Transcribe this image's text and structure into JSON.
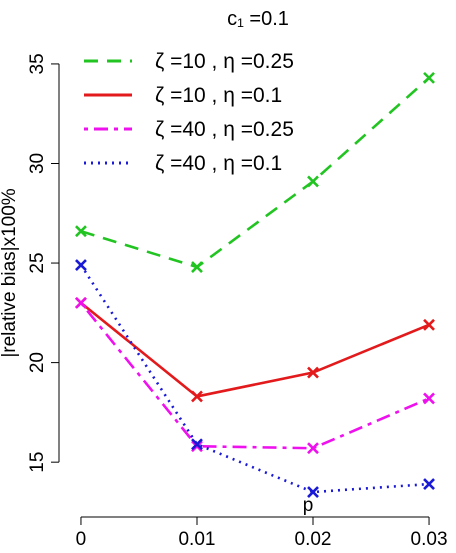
{
  "chart_data": {
    "type": "line",
    "title": "c₁ =0.1",
    "xlabel": "p",
    "ylabel": "|relative bias|x100%",
    "x": [
      0,
      0.01,
      0.02,
      0.03
    ],
    "x_tick_labels": [
      "0",
      "0.01",
      "0.02",
      "0.03"
    ],
    "y_ticks": [
      15,
      20,
      25,
      30,
      35
    ],
    "ylim": [
      13.1,
      35.8
    ],
    "xlim": [
      -0.0006,
      0.0306
    ],
    "grid": false,
    "legend_position": "top-left",
    "series": [
      {
        "name": "ζ =10 , η =0.25",
        "color": "#22c422",
        "dash": "dashed",
        "values": [
          26.6,
          24.8,
          29.1,
          34.3
        ]
      },
      {
        "name": "ζ =10 , η =0.1",
        "color": "#e31a1c",
        "dash": "solid",
        "values": [
          23.0,
          18.3,
          19.5,
          21.9
        ]
      },
      {
        "name": "ζ =40 , η =0.25",
        "color": "#ee11ee",
        "dash": "dotdash",
        "values": [
          23.0,
          15.8,
          15.7,
          18.2
        ]
      },
      {
        "name": "ζ =40 , η =0.1",
        "color": "#1a1ad6",
        "dash": "dotted",
        "values": [
          24.9,
          15.9,
          13.5,
          13.9
        ]
      }
    ]
  }
}
